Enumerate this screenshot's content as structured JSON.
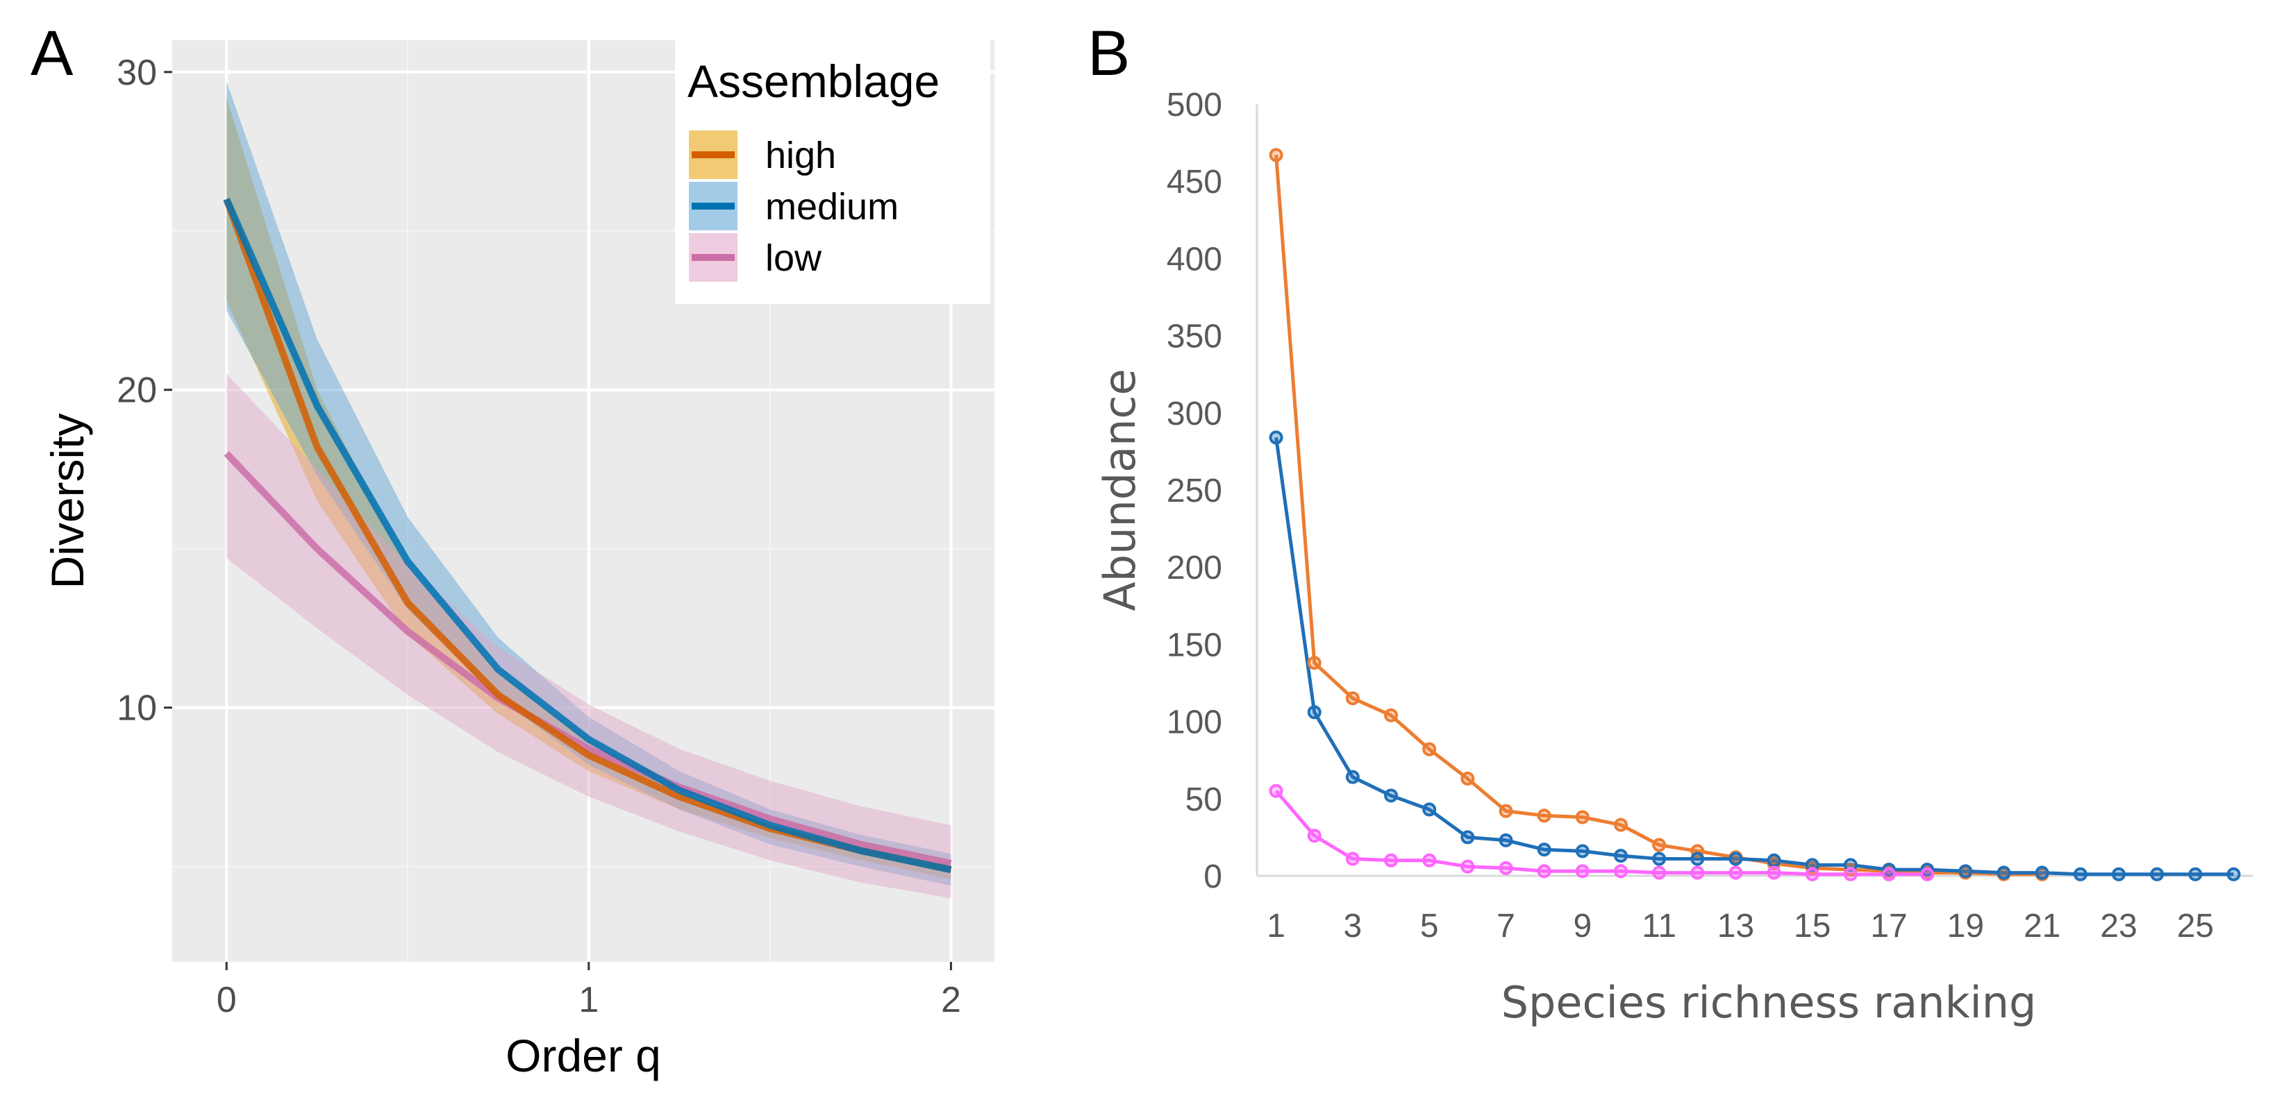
{
  "chart_data": [
    {
      "panel": "A",
      "type": "line",
      "title": "",
      "xlabel": "Order q",
      "ylabel": "Diversity",
      "xlim": [
        -0.15,
        2.12
      ],
      "ylim": [
        2.0,
        31.0
      ],
      "xticks": [
        0,
        1,
        2
      ],
      "xtick_labels": [
        "0",
        "1",
        "2"
      ],
      "yticks": [
        10,
        20,
        30
      ],
      "ytick_labels": [
        "10",
        "20",
        "30"
      ],
      "grid": true,
      "legend": {
        "title": "Assemblage",
        "position": "top-right",
        "entries": [
          "high",
          "medium",
          "low"
        ]
      },
      "x": [
        0,
        0.25,
        0.5,
        0.75,
        1.0,
        1.25,
        1.5,
        1.75,
        2.0
      ],
      "series": [
        {
          "name": "high",
          "color": "#d55e00",
          "band_color": "#e69f00",
          "values": [
            26.0,
            18.2,
            13.3,
            10.4,
            8.5,
            7.2,
            6.2,
            5.5,
            4.9
          ],
          "lower": [
            22.8,
            16.5,
            12.3,
            9.8,
            8.0,
            6.8,
            5.9,
            5.2,
            4.6
          ],
          "upper": [
            29.2,
            20.0,
            14.4,
            11.1,
            9.0,
            7.6,
            6.6,
            5.8,
            5.2
          ]
        },
        {
          "name": "medium",
          "color": "#0072b2",
          "band_color": "#56a0d3",
          "values": [
            26.0,
            19.5,
            14.6,
            11.2,
            9.0,
            7.4,
            6.3,
            5.5,
            4.9
          ],
          "lower": [
            22.5,
            17.3,
            13.1,
            10.3,
            8.2,
            6.8,
            5.7,
            5.0,
            4.4
          ],
          "upper": [
            29.7,
            21.6,
            16.0,
            12.2,
            9.7,
            8.0,
            6.8,
            6.0,
            5.4
          ]
        },
        {
          "name": "low",
          "color": "#cc6ea8",
          "band_color": "#e1a3c6",
          "values": [
            18.0,
            15.0,
            12.4,
            10.3,
            8.7,
            7.5,
            6.5,
            5.7,
            5.1
          ],
          "lower": [
            14.7,
            12.5,
            10.4,
            8.6,
            7.2,
            6.1,
            5.2,
            4.5,
            4.0
          ],
          "upper": [
            20.5,
            17.5,
            14.5,
            11.9,
            10.1,
            8.7,
            7.7,
            6.9,
            6.3
          ]
        }
      ]
    },
    {
      "panel": "B",
      "type": "line",
      "title": "",
      "xlabel": "Species richness ranking",
      "ylabel": "Abundance",
      "xlim": [
        0.5,
        26.5
      ],
      "ylim": [
        0,
        500
      ],
      "xticks": [
        1,
        3,
        5,
        7,
        9,
        11,
        13,
        15,
        17,
        19,
        21,
        23,
        25
      ],
      "xtick_labels": [
        "1",
        "3",
        "5",
        "7",
        "9",
        "11",
        "13",
        "15",
        "17",
        "19",
        "21",
        "23",
        "25"
      ],
      "yticks": [
        0,
        50,
        100,
        150,
        200,
        250,
        300,
        350,
        400,
        450,
        500
      ],
      "ytick_labels": [
        "0",
        "50",
        "100",
        "150",
        "200",
        "250",
        "300",
        "350",
        "400",
        "450",
        "500"
      ],
      "grid": false,
      "markers": true,
      "series": [
        {
          "name": "high",
          "color": "#ed7d31",
          "x": [
            1,
            2,
            3,
            4,
            5,
            6,
            7,
            8,
            9,
            10,
            11,
            12,
            13,
            14,
            15,
            16,
            17,
            18,
            19,
            20,
            21
          ],
          "values": [
            467,
            138,
            115,
            104,
            82,
            63,
            42,
            39,
            38,
            33,
            20,
            16,
            12,
            8,
            5,
            4,
            3,
            2,
            2,
            1,
            1
          ]
        },
        {
          "name": "medium",
          "color": "#1f6fb8",
          "x": [
            1,
            2,
            3,
            4,
            5,
            6,
            7,
            8,
            9,
            10,
            11,
            12,
            13,
            14,
            15,
            16,
            17,
            18,
            19,
            20,
            21,
            22,
            23,
            24,
            25,
            26
          ],
          "values": [
            284,
            106,
            64,
            52,
            43,
            25,
            23,
            17,
            16,
            13,
            11,
            11,
            11,
            10,
            7,
            7,
            4,
            4,
            3,
            2,
            2,
            1,
            1,
            1,
            1,
            1
          ]
        },
        {
          "name": "low",
          "color": "#ff66ff",
          "x": [
            1,
            2,
            3,
            4,
            5,
            6,
            7,
            8,
            9,
            10,
            11,
            12,
            13,
            14,
            15,
            16,
            17,
            18
          ],
          "values": [
            55,
            26,
            11,
            10,
            10,
            6,
            5,
            3,
            3,
            3,
            2,
            2,
            2,
            2,
            1,
            1,
            1,
            1
          ]
        }
      ]
    }
  ]
}
